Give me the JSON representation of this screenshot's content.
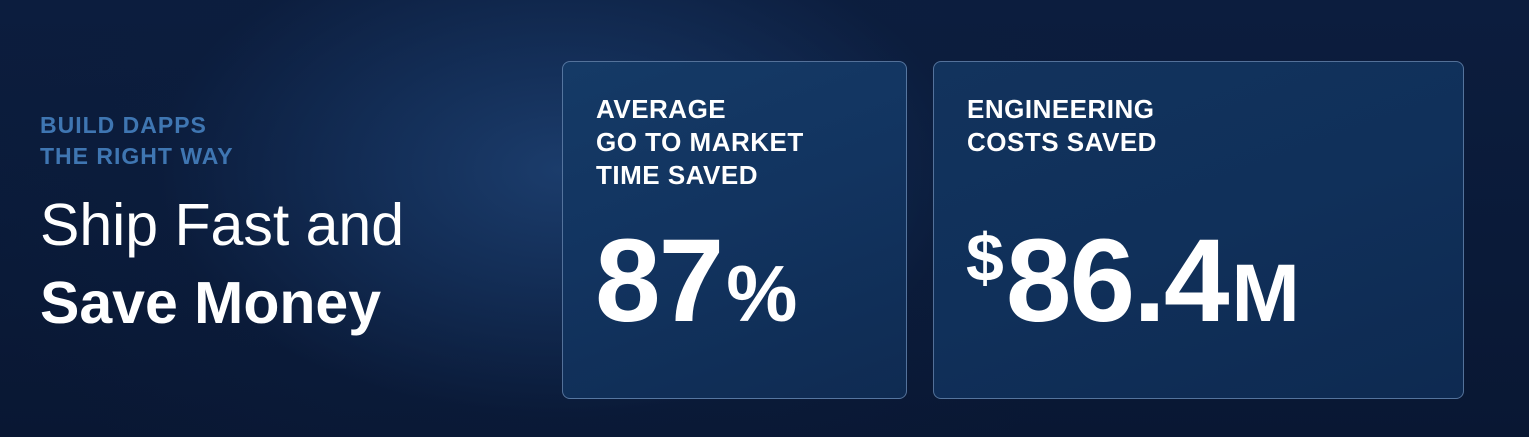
{
  "intro": {
    "eyebrow_line1": "BUILD DAPPS",
    "eyebrow_line2": "THE RIGHT WAY",
    "headline_line1": "Ship Fast and",
    "headline_line2": "Save Money"
  },
  "cards": [
    {
      "label_lines": [
        "AVERAGE",
        "GO TO MARKET",
        "TIME SAVED"
      ],
      "value": "87",
      "suffix": "%"
    },
    {
      "label_lines": [
        "ENGINEERING",
        "COSTS SAVED"
      ],
      "prefix": "$",
      "value": "86.4",
      "suffix": "M"
    }
  ],
  "colors": {
    "background": "#0a1a38",
    "eyebrow": "#3f76b2",
    "text": "#ffffff",
    "card_border": "#8caad2"
  }
}
